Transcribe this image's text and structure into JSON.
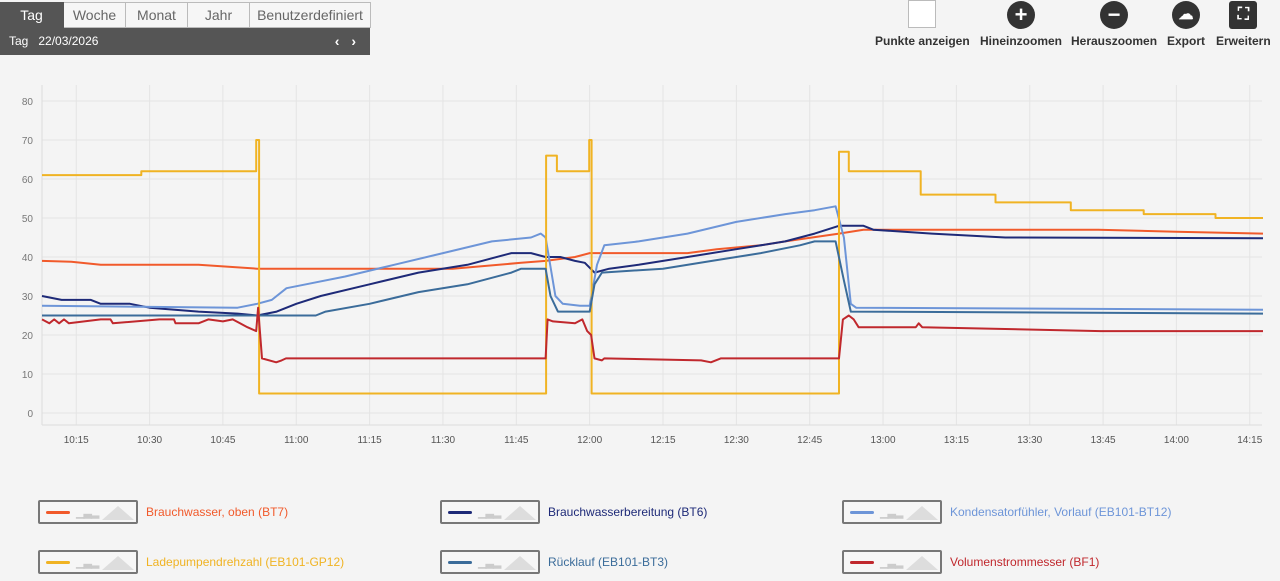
{
  "period": {
    "tabs": [
      "Tag",
      "Woche",
      "Monat",
      "Jahr",
      "Benutzerdefiniert"
    ],
    "active": 0,
    "label": "Tag",
    "date": "22/03/2026",
    "nav": "‹ ›"
  },
  "toolbar": {
    "points": "Punkte anzeigen",
    "zoom_in": "Hineinzoomen",
    "zoom_out": "Herauszoomen",
    "export": "Export",
    "expand": "Erweitern"
  },
  "chart_data": {
    "type": "line",
    "title": "",
    "xlabel": "",
    "ylabel": "",
    "x_unit": "minutes after 10:00",
    "xlim": [
      8,
      257.5
    ],
    "ylim": [
      -2,
      84
    ],
    "yticks": [
      0,
      10,
      20,
      30,
      40,
      50,
      60,
      70,
      80
    ],
    "xticks": [
      {
        "t": 15,
        "label": "10:15"
      },
      {
        "t": 30,
        "label": "10:30"
      },
      {
        "t": 45,
        "label": "10:45"
      },
      {
        "t": 60,
        "label": "11:00"
      },
      {
        "t": 75,
        "label": "11:15"
      },
      {
        "t": 90,
        "label": "11:30"
      },
      {
        "t": 105,
        "label": "11:45"
      },
      {
        "t": 120,
        "label": "12:00"
      },
      {
        "t": 135,
        "label": "12:15"
      },
      {
        "t": 150,
        "label": "12:30"
      },
      {
        "t": 165,
        "label": "12:45"
      },
      {
        "t": 180,
        "label": "13:00"
      },
      {
        "t": 195,
        "label": "13:15"
      },
      {
        "t": 210,
        "label": "13:30"
      },
      {
        "t": 225,
        "label": "13:45"
      },
      {
        "t": 240,
        "label": "14:00"
      },
      {
        "t": 255,
        "label": "14:15"
      }
    ],
    "grid": true,
    "legend": "bottom",
    "series": [
      {
        "name": "Brauchwasser, oben (BT7)",
        "color": "#f15a2b",
        "points": [
          [
            8,
            39
          ],
          [
            14,
            38.8
          ],
          [
            20,
            38
          ],
          [
            40,
            38
          ],
          [
            52,
            37
          ],
          [
            92,
            37
          ],
          [
            106,
            38.5
          ],
          [
            111,
            39
          ],
          [
            117,
            40
          ],
          [
            120,
            41
          ],
          [
            140,
            41
          ],
          [
            146,
            42
          ],
          [
            155,
            43
          ],
          [
            160,
            44
          ],
          [
            171,
            46
          ],
          [
            176,
            47
          ],
          [
            224,
            47
          ],
          [
            240,
            46.5
          ],
          [
            257.7,
            46
          ]
        ]
      },
      {
        "name": "Brauchwasserbereitung (BT6)",
        "color": "#1e2a78",
        "points": [
          [
            8,
            30
          ],
          [
            12,
            29
          ],
          [
            18,
            29
          ],
          [
            20,
            28
          ],
          [
            26,
            28
          ],
          [
            30,
            27
          ],
          [
            40,
            26
          ],
          [
            48,
            25.5
          ],
          [
            52,
            25
          ],
          [
            56,
            26
          ],
          [
            60,
            28
          ],
          [
            65,
            30
          ],
          [
            75,
            33
          ],
          [
            85,
            36
          ],
          [
            95,
            38
          ],
          [
            104,
            41
          ],
          [
            108,
            41
          ],
          [
            111,
            40
          ],
          [
            114,
            40
          ],
          [
            117,
            39
          ],
          [
            119,
            38.5
          ],
          [
            121,
            36
          ],
          [
            124,
            37
          ],
          [
            130,
            38
          ],
          [
            140,
            40
          ],
          [
            150,
            42
          ],
          [
            160,
            44
          ],
          [
            166,
            46
          ],
          [
            171,
            48
          ],
          [
            176,
            48
          ],
          [
            178,
            47
          ],
          [
            190,
            46
          ],
          [
            205,
            45
          ],
          [
            257.7,
            44.8
          ]
        ]
      },
      {
        "name": "Kondensatorfühler, Vorlauf (EB101-BT12)",
        "color": "#6d95d8",
        "points": [
          [
            8,
            27.5
          ],
          [
            48,
            27
          ],
          [
            52,
            28
          ],
          [
            55,
            29
          ],
          [
            58,
            32
          ],
          [
            62,
            33
          ],
          [
            70,
            35
          ],
          [
            80,
            38
          ],
          [
            90,
            41
          ],
          [
            100,
            44
          ],
          [
            108,
            45
          ],
          [
            110,
            46
          ],
          [
            111,
            45
          ],
          [
            113,
            30
          ],
          [
            114.5,
            28
          ],
          [
            118,
            27.5
          ],
          [
            120,
            27.5
          ],
          [
            121.5,
            38
          ],
          [
            123,
            43
          ],
          [
            130,
            44
          ],
          [
            140,
            46
          ],
          [
            150,
            49
          ],
          [
            160,
            51
          ],
          [
            166,
            52
          ],
          [
            170.3,
            53
          ],
          [
            172,
            45
          ],
          [
            173.4,
            28
          ],
          [
            174.5,
            27
          ],
          [
            257.7,
            26.5
          ]
        ]
      },
      {
        "name": "Ladepumpendrehzahl (EB101-GP12)",
        "color": "#f0b323",
        "points": [
          [
            8,
            61
          ],
          [
            28.3,
            61
          ],
          [
            28.3,
            62
          ],
          [
            51.8,
            62
          ],
          [
            51.8,
            70
          ],
          [
            52.4,
            70
          ],
          [
            52.4,
            5
          ],
          [
            111.1,
            5
          ],
          [
            111.1,
            66
          ],
          [
            113.3,
            66
          ],
          [
            113.3,
            62
          ],
          [
            119.9,
            62
          ],
          [
            119.9,
            70
          ],
          [
            120.4,
            70
          ],
          [
            120.4,
            5
          ],
          [
            171,
            5
          ],
          [
            171,
            67
          ],
          [
            173,
            67
          ],
          [
            173,
            62
          ],
          [
            187.7,
            62
          ],
          [
            187.7,
            56
          ],
          [
            203,
            56
          ],
          [
            203,
            54
          ],
          [
            218.4,
            54
          ],
          [
            218.4,
            52
          ],
          [
            233.3,
            52
          ],
          [
            233.3,
            51
          ],
          [
            248,
            51
          ],
          [
            248,
            50
          ],
          [
            257.7,
            50
          ]
        ]
      },
      {
        "name": "Rücklauf (EB101-BT3)",
        "color": "#3b6c9a",
        "points": [
          [
            8,
            25
          ],
          [
            64,
            25
          ],
          [
            66,
            26
          ],
          [
            75,
            28
          ],
          [
            85,
            31
          ],
          [
            95,
            33
          ],
          [
            104,
            36
          ],
          [
            106,
            37
          ],
          [
            111,
            37
          ],
          [
            112,
            30
          ],
          [
            113.5,
            26
          ],
          [
            120,
            26
          ],
          [
            121,
            33
          ],
          [
            122.5,
            36
          ],
          [
            135,
            37
          ],
          [
            145,
            39
          ],
          [
            155,
            41
          ],
          [
            163,
            43
          ],
          [
            166,
            44
          ],
          [
            170.3,
            44
          ],
          [
            172,
            34
          ],
          [
            173.4,
            26
          ],
          [
            257.7,
            25.5
          ]
        ]
      },
      {
        "name": "Volumenstrommesser (BF1)",
        "color": "#c0282d",
        "points": [
          [
            8,
            24
          ],
          [
            9.5,
            23
          ],
          [
            10.5,
            24
          ],
          [
            11.5,
            23
          ],
          [
            12.5,
            24
          ],
          [
            13.5,
            23
          ],
          [
            20,
            24
          ],
          [
            22,
            24
          ],
          [
            22.5,
            23
          ],
          [
            32,
            24
          ],
          [
            35,
            24
          ],
          [
            35.3,
            23
          ],
          [
            40,
            23
          ],
          [
            42,
            24
          ],
          [
            45,
            23.5
          ],
          [
            47,
            24
          ],
          [
            48.5,
            23
          ],
          [
            50,
            22
          ],
          [
            51.8,
            21
          ],
          [
            52.2,
            27
          ],
          [
            53,
            14
          ],
          [
            55.9,
            13
          ],
          [
            57,
            13.5
          ],
          [
            57.9,
            14
          ],
          [
            111,
            14
          ],
          [
            111.4,
            24
          ],
          [
            112.5,
            23.5
          ],
          [
            117,
            23
          ],
          [
            118.5,
            24
          ],
          [
            119.5,
            21
          ],
          [
            120.3,
            20
          ],
          [
            121,
            14
          ],
          [
            122.5,
            13.5
          ],
          [
            123,
            14
          ],
          [
            142.8,
            13.5
          ],
          [
            144.8,
            13
          ],
          [
            146.8,
            14
          ],
          [
            171,
            14
          ],
          [
            171.8,
            24
          ],
          [
            173,
            25
          ],
          [
            174,
            24
          ],
          [
            175,
            22
          ],
          [
            186.7,
            22
          ],
          [
            187.3,
            23
          ],
          [
            188,
            22
          ],
          [
            224.5,
            21
          ],
          [
            257.7,
            21
          ]
        ]
      }
    ]
  }
}
